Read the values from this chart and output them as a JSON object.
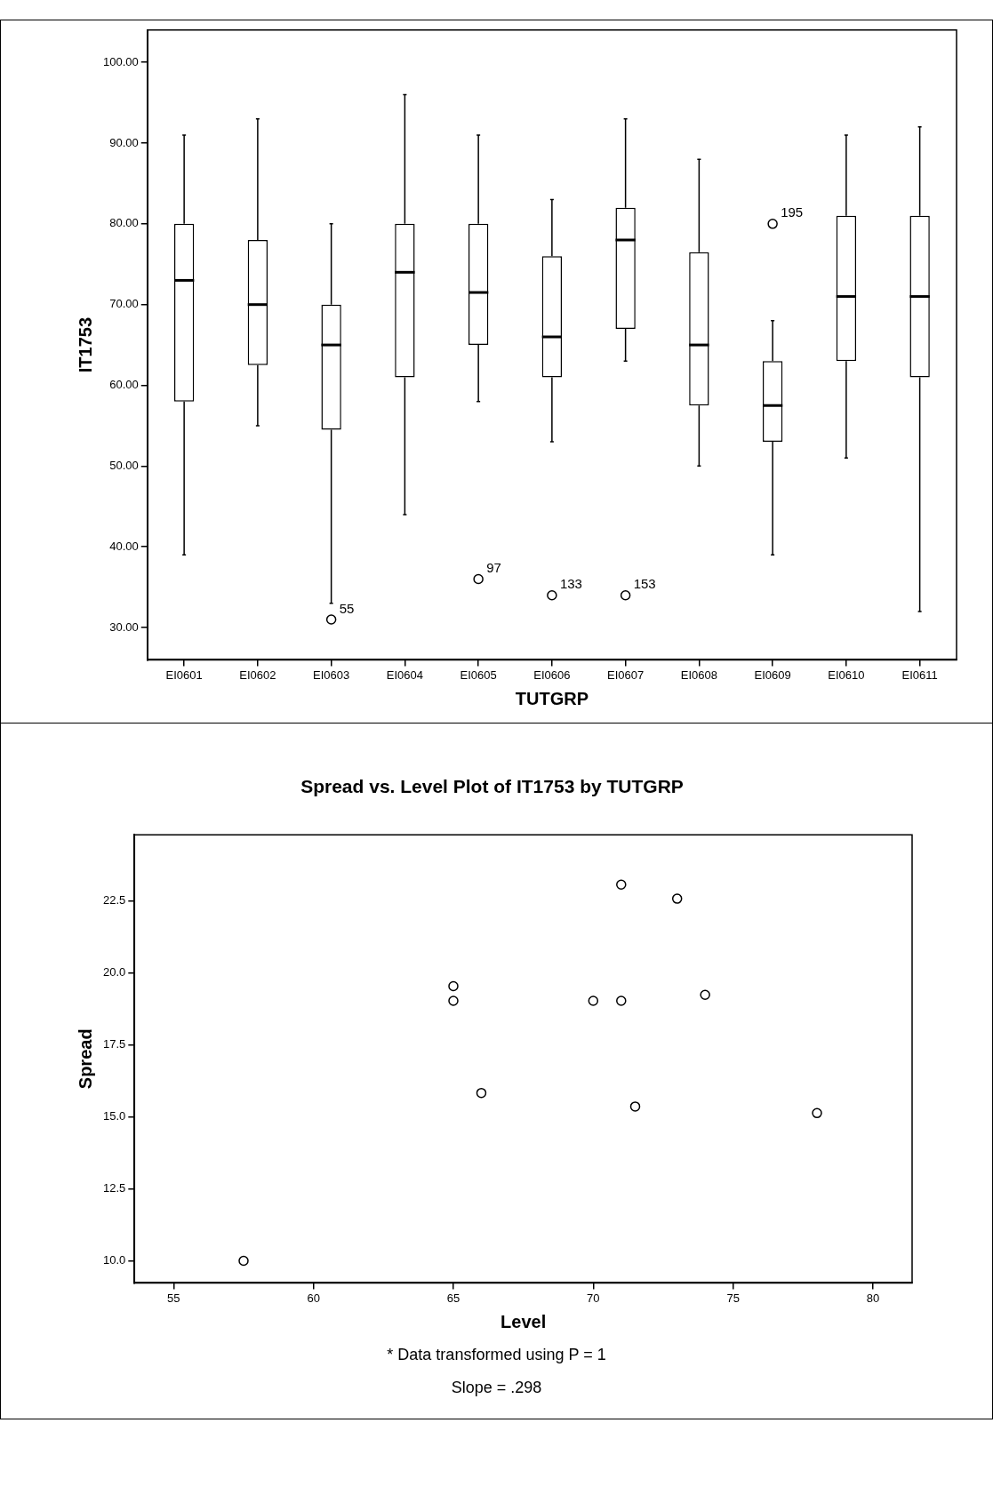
{
  "chart_data": [
    {
      "type": "box",
      "xlabel": "TUTGRP",
      "ylabel": "IT1753",
      "categories": [
        "EI0601",
        "EI0602",
        "EI0603",
        "EI0604",
        "EI0605",
        "EI0606",
        "EI0607",
        "EI0608",
        "EI0609",
        "EI0610",
        "EI0611"
      ],
      "boxes": [
        {
          "low": 39,
          "q1": 58,
          "median": 73,
          "q3": 80,
          "high": 91
        },
        {
          "low": 55,
          "q1": 62.5,
          "median": 70,
          "q3": 78,
          "high": 93
        },
        {
          "low": 33,
          "q1": 54.5,
          "median": 65,
          "q3": 70,
          "high": 80,
          "outliers": [
            31
          ]
        },
        {
          "low": 44,
          "q1": 61,
          "median": 74,
          "q3": 80,
          "high": 96
        },
        {
          "low": 58,
          "q1": 65,
          "median": 71.5,
          "q3": 80,
          "high": 91,
          "outliers": [
            36
          ]
        },
        {
          "low": 53,
          "q1": 61,
          "median": 66,
          "q3": 76,
          "high": 83,
          "outliers": [
            34
          ]
        },
        {
          "low": 63,
          "q1": 67,
          "median": 78,
          "q3": 82,
          "high": 93,
          "outliers": [
            34
          ]
        },
        {
          "low": 50,
          "q1": 57.5,
          "median": 65,
          "q3": 76.5,
          "high": 88
        },
        {
          "low": 39,
          "q1": 53,
          "median": 57.5,
          "q3": 63,
          "high": 68,
          "outliers": [
            80
          ]
        },
        {
          "low": 51,
          "q1": 63,
          "median": 71,
          "q3": 81,
          "high": 91
        },
        {
          "low": 32,
          "q1": 61,
          "median": 71,
          "q3": 81,
          "high": 92
        }
      ],
      "ylim": [
        26,
        104
      ],
      "yticks": [
        {
          "value": 30,
          "label": "30.00"
        },
        {
          "value": 40,
          "label": "40.00"
        },
        {
          "value": 50,
          "label": "50.00"
        },
        {
          "value": 60,
          "label": "60.00"
        },
        {
          "value": 70,
          "label": "70.00"
        },
        {
          "value": 80,
          "label": "80.00"
        },
        {
          "value": 90,
          "label": "90.00"
        },
        {
          "value": 100,
          "label": "100.00"
        }
      ],
      "annotations": [
        "55",
        "97",
        "133",
        "153",
        "195"
      ]
    },
    {
      "type": "scatter",
      "title": "Spread vs. Level Plot of IT1753 by TUTGRP",
      "xlabel": "Level",
      "ylabel": "Spread",
      "marker": "circle",
      "color": "#000000",
      "x": [
        57.5,
        65,
        65,
        66,
        70,
        71,
        71,
        71.5,
        73,
        74,
        78
      ],
      "values": [
        10.0,
        19.54,
        19.03,
        15.83,
        19.03,
        23.07,
        19.03,
        15.36,
        22.58,
        19.24,
        15.13
      ],
      "xlim": [
        53.6,
        81.4
      ],
      "xticks": [
        55,
        60,
        65,
        70,
        75,
        80
      ],
      "ylim": [
        9.23,
        24.8
      ],
      "yticks": [
        {
          "value": 10,
          "label": "10.0"
        },
        12.5,
        {
          "value": 15,
          "label": "15.0"
        },
        17.5,
        {
          "value": 20,
          "label": "20.0"
        },
        22.5
      ],
      "annotations": [
        "* Data transformed using P = 1",
        "Slope = .298"
      ]
    }
  ]
}
